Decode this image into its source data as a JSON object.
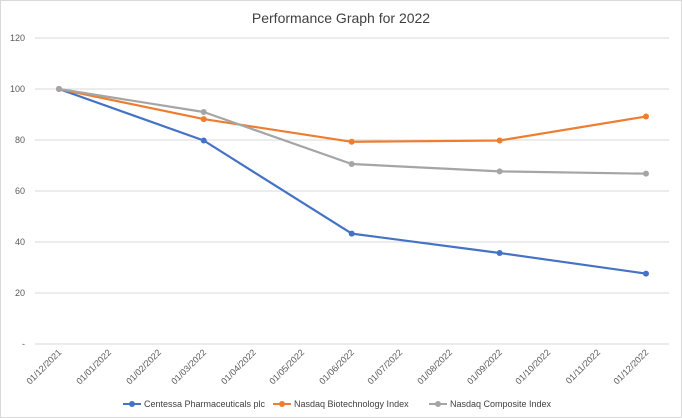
{
  "chart_data": {
    "type": "line",
    "title": "Performance Graph for 2022",
    "xlabel": "",
    "ylabel": "",
    "x_ticks": [
      "01/12/2021",
      "01/01/2022",
      "01/02/2022",
      "01/03/2022",
      "01/04/2022",
      "01/05/2022",
      "01/06/2022",
      "01/07/2022",
      "01/08/2022",
      "01/09/2022",
      "01/10/2022",
      "01/11/2022",
      "01/12/2022"
    ],
    "y_ticks": [
      "-",
      "20",
      "40",
      "60",
      "80",
      "100",
      "120"
    ],
    "ylim": [
      0,
      120
    ],
    "grid": true,
    "legend": "bottom",
    "series": [
      {
        "name": "Centessa Pharmaceuticals plc",
        "color": "#4472C4",
        "points": [
          {
            "x": "01/12/2021",
            "y": 100
          },
          {
            "x": "01/03/2022",
            "y": 79.8
          },
          {
            "x": "01/06/2022",
            "y": 43.3
          },
          {
            "x": "01/09/2022",
            "y": 35.7
          },
          {
            "x": "01/12/2022",
            "y": 27.6
          }
        ]
      },
      {
        "name": "Nasdaq  Biotechnology Index",
        "color": "#ED7D31",
        "points": [
          {
            "x": "01/12/2021",
            "y": 100
          },
          {
            "x": "01/03/2022",
            "y": 88.2
          },
          {
            "x": "01/06/2022",
            "y": 79.3
          },
          {
            "x": "01/09/2022",
            "y": 79.8
          },
          {
            "x": "01/12/2022",
            "y": 89.2
          }
        ]
      },
      {
        "name": "Nasdaq Composite Index",
        "color": "#A5A5A5",
        "points": [
          {
            "x": "01/12/2021",
            "y": 100
          },
          {
            "x": "01/03/2022",
            "y": 91.0
          },
          {
            "x": "01/06/2022",
            "y": 70.6
          },
          {
            "x": "01/09/2022",
            "y": 67.7
          },
          {
            "x": "01/12/2022",
            "y": 66.8
          }
        ]
      }
    ]
  }
}
